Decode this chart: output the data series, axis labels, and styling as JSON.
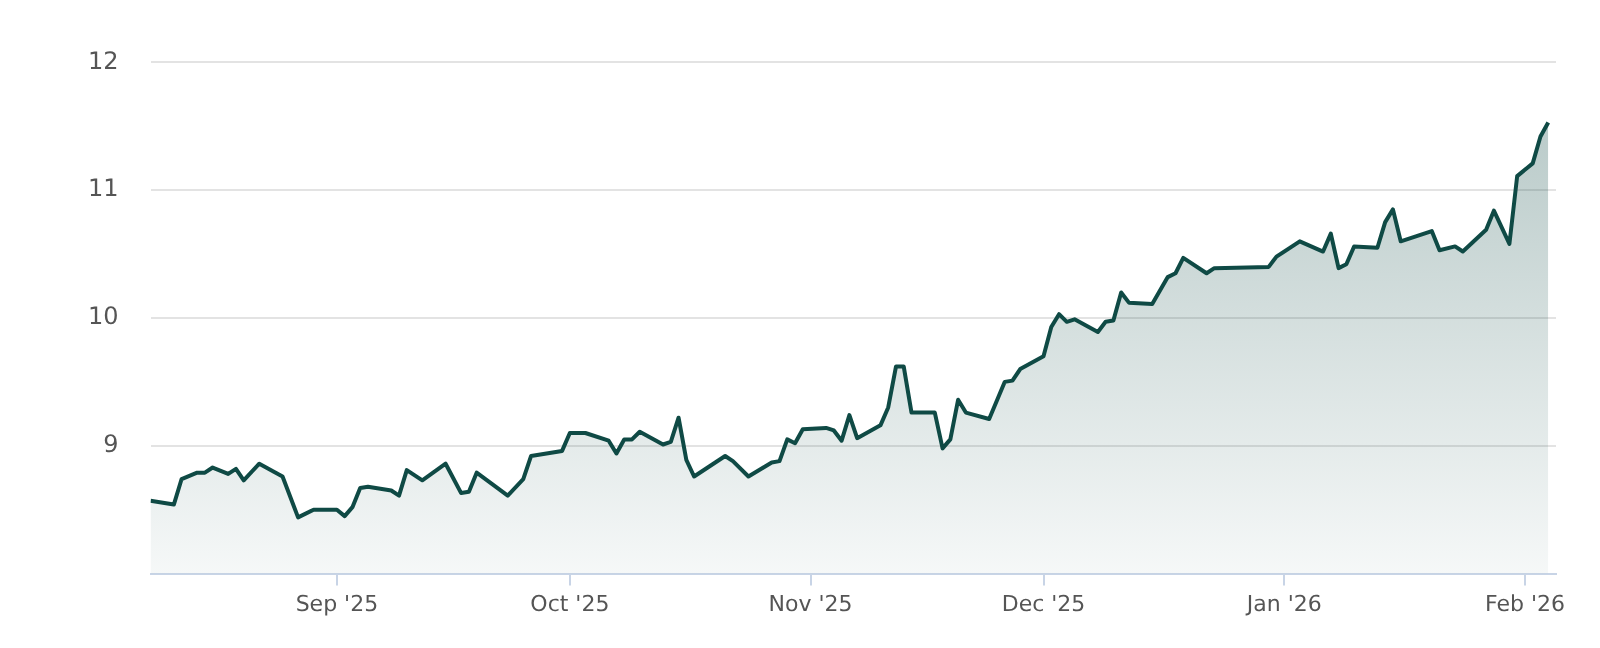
{
  "chart_data": {
    "type": "area",
    "x": [
      "2025-08-08",
      "2025-08-11",
      "2025-08-12",
      "2025-08-14",
      "2025-08-15",
      "2025-08-16",
      "2025-08-18",
      "2025-08-19",
      "2025-08-20",
      "2025-08-22",
      "2025-08-25",
      "2025-08-27",
      "2025-08-29",
      "2025-09-01",
      "2025-09-02",
      "2025-09-03",
      "2025-09-04",
      "2025-09-05",
      "2025-09-08",
      "2025-09-09",
      "2025-09-10",
      "2025-09-12",
      "2025-09-15",
      "2025-09-17",
      "2025-09-18",
      "2025-09-19",
      "2025-09-23",
      "2025-09-25",
      "2025-09-26",
      "2025-09-30",
      "2025-10-01",
      "2025-10-03",
      "2025-10-06",
      "2025-10-07",
      "2025-10-08",
      "2025-10-09",
      "2025-10-10",
      "2025-10-13",
      "2025-10-14",
      "2025-10-15",
      "2025-10-16",
      "2025-10-17",
      "2025-10-21",
      "2025-10-22",
      "2025-10-24",
      "2025-10-27",
      "2025-10-28",
      "2025-10-29",
      "2025-10-30",
      "2025-10-31",
      "2025-11-03",
      "2025-11-04",
      "2025-11-05",
      "2025-11-06",
      "2025-11-07",
      "2025-11-10",
      "2025-11-11",
      "2025-11-12",
      "2025-11-13",
      "2025-11-14",
      "2025-11-17",
      "2025-11-18",
      "2025-11-19",
      "2025-11-20",
      "2025-11-21",
      "2025-11-24",
      "2025-11-26",
      "2025-11-27",
      "2025-11-28",
      "2025-12-01",
      "2025-12-02",
      "2025-12-03",
      "2025-12-04",
      "2025-12-05",
      "2025-12-08",
      "2025-12-09",
      "2025-12-10",
      "2025-12-11",
      "2025-12-12",
      "2025-12-15",
      "2025-12-17",
      "2025-12-18",
      "2025-12-19",
      "2025-12-22",
      "2025-12-23",
      "2025-12-30",
      "2025-12-31",
      "2026-01-03",
      "2026-01-06",
      "2026-01-07",
      "2026-01-08",
      "2026-01-09",
      "2026-01-10",
      "2026-01-13",
      "2026-01-14",
      "2026-01-15",
      "2026-01-16",
      "2026-01-20",
      "2026-01-21",
      "2026-01-23",
      "2026-01-24",
      "2026-01-27",
      "2026-01-28",
      "2026-01-30",
      "2026-01-31",
      "2026-02-02",
      "2026-02-03",
      "2026-02-04"
    ],
    "series": [
      {
        "color": "#0f4a45",
        "values": [
          8.57,
          8.54,
          8.74,
          8.79,
          8.79,
          8.83,
          8.78,
          8.82,
          8.73,
          8.86,
          8.76,
          8.44,
          8.5,
          8.5,
          8.45,
          8.52,
          8.67,
          8.68,
          8.65,
          8.61,
          8.81,
          8.73,
          8.86,
          8.63,
          8.64,
          8.79,
          8.61,
          8.74,
          8.92,
          8.96,
          9.1,
          9.1,
          9.04,
          8.94,
          9.05,
          9.05,
          9.11,
          9.01,
          9.03,
          9.22,
          8.89,
          8.76,
          8.92,
          8.88,
          8.76,
          8.87,
          8.88,
          9.05,
          9.02,
          9.13,
          9.14,
          9.12,
          9.04,
          9.24,
          9.06,
          9.16,
          9.3,
          9.62,
          9.62,
          9.26,
          9.26,
          8.98,
          9.05,
          9.36,
          9.26,
          9.21,
          9.5,
          9.51,
          9.6,
          9.7,
          9.93,
          10.03,
          9.97,
          9.99,
          9.89,
          9.97,
          9.98,
          10.2,
          10.12,
          10.11,
          10.32,
          10.35,
          10.47,
          10.35,
          10.39,
          10.4,
          10.48,
          10.6,
          10.52,
          10.66,
          10.39,
          10.42,
          10.56,
          10.55,
          10.75,
          10.85,
          10.6,
          10.68,
          10.53,
          10.56,
          10.52,
          10.69,
          10.84,
          10.58,
          11.11,
          11.21,
          11.42,
          11.53
        ]
      }
    ],
    "xlim": [
      "2025-08-08",
      "2026-02-05"
    ],
    "xticks": [
      {
        "value": "2025-09-01",
        "label": "Sep '25"
      },
      {
        "value": "2025-10-01",
        "label": "Oct '25"
      },
      {
        "value": "2025-11-01",
        "label": "Nov '25"
      },
      {
        "value": "2025-12-01",
        "label": "Dec '25"
      },
      {
        "value": "2026-01-01",
        "label": "Jan '26"
      },
      {
        "value": "2026-02-01",
        "label": "Feb '26"
      }
    ],
    "ylim": [
      8,
      12
    ],
    "yticks": [
      9,
      10,
      11,
      12
    ],
    "grid": "y",
    "legend": false,
    "marker": "none",
    "line_style": "solid"
  }
}
